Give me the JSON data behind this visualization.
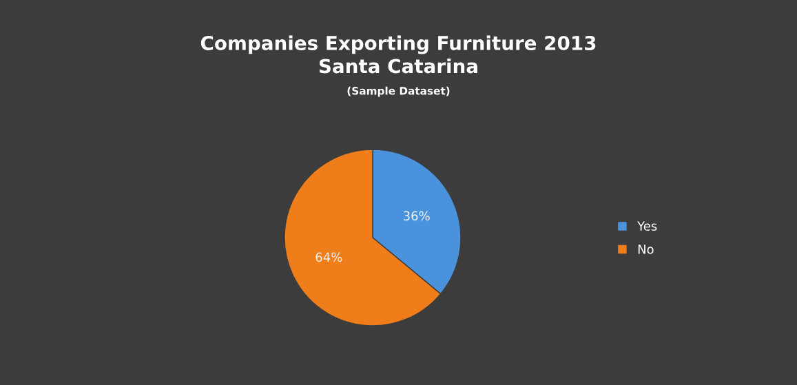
{
  "chart_data": {
    "type": "pie",
    "title": "Companies Exporting Furniture 2013\nSanta Catarina",
    "subtitle": "(Sample Dataset)",
    "categories": [
      "Yes",
      "No"
    ],
    "values": [
      36,
      64
    ],
    "colors": [
      "#4b92dc",
      "#ef7d1a"
    ],
    "value_labels": [
      "36%",
      "64%"
    ],
    "legend": "right"
  }
}
